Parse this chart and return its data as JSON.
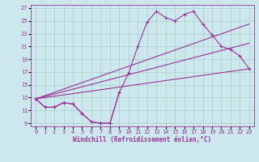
{
  "xlabel": "Windchill (Refroidissement éolien,°C)",
  "bg_color": "#cce8ec",
  "grid_color": "#aacccc",
  "line_color": "#993399",
  "xlim": [
    -0.5,
    23.5
  ],
  "ylim": [
    8.5,
    27.5
  ],
  "xticks": [
    0,
    1,
    2,
    3,
    4,
    5,
    6,
    7,
    8,
    9,
    10,
    11,
    12,
    13,
    14,
    15,
    16,
    17,
    18,
    19,
    20,
    21,
    22,
    23
  ],
  "yticks": [
    9,
    11,
    13,
    15,
    17,
    19,
    21,
    23,
    25,
    27
  ],
  "curve1": {
    "x": [
      0,
      1,
      2,
      3,
      4,
      5,
      6,
      7,
      8,
      9,
      10,
      11,
      12,
      13,
      14,
      15,
      16,
      17,
      18,
      19,
      20,
      21,
      22,
      23
    ],
    "y": [
      12.8,
      11.5,
      11.5,
      12.2,
      12.0,
      10.5,
      9.2,
      9.0,
      9.0,
      13.8,
      16.8,
      21.0,
      24.8,
      26.5,
      25.5,
      25.0,
      26.0,
      26.5,
      24.5,
      22.8,
      21.0,
      20.5,
      19.5,
      17.5
    ]
  },
  "curve2": {
    "x": [
      0,
      1,
      2,
      3,
      4,
      5,
      6,
      7,
      8,
      9
    ],
    "y": [
      12.8,
      11.5,
      11.5,
      12.2,
      12.0,
      10.5,
      9.2,
      9.0,
      9.0,
      13.8
    ]
  },
  "line1": {
    "x": [
      0,
      23
    ],
    "y": [
      12.8,
      24.5
    ]
  },
  "line2": {
    "x": [
      0,
      23
    ],
    "y": [
      12.8,
      21.5
    ]
  },
  "line3": {
    "x": [
      0,
      23
    ],
    "y": [
      12.8,
      17.5
    ]
  }
}
